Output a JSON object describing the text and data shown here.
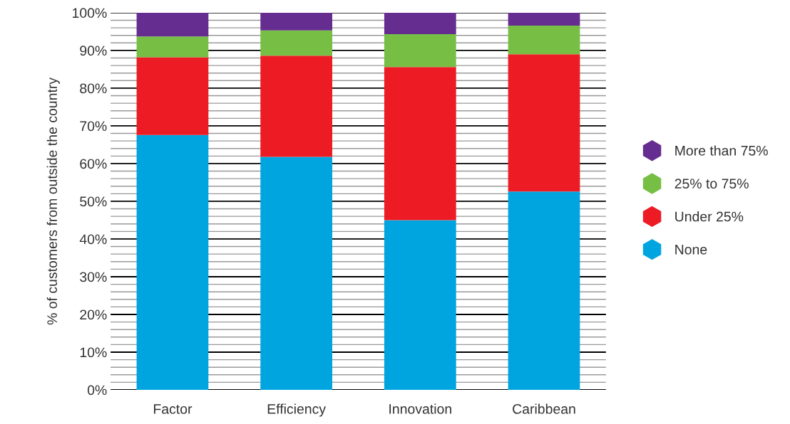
{
  "chart_data": {
    "type": "bar",
    "stacked": true,
    "ylabel": "% of customers from outside the country",
    "categories": [
      "Factor",
      "Efficiency",
      "Innovation",
      "Caribbean"
    ],
    "series": [
      {
        "name": "None",
        "color": "#00a5e0",
        "values": [
          67.6,
          61.8,
          45.0,
          52.6
        ]
      },
      {
        "name": "Under 25%",
        "color": "#ed1c24",
        "values": [
          20.6,
          26.8,
          40.6,
          36.4
        ]
      },
      {
        "name": "25% to 75%",
        "color": "#76bf44",
        "values": [
          5.5,
          6.7,
          8.7,
          7.6
        ]
      },
      {
        "name": "More than 75%",
        "color": "#662d91",
        "values": [
          6.3,
          4.7,
          5.7,
          3.4
        ]
      }
    ],
    "ylim": [
      0,
      100
    ],
    "yticks": [
      {
        "value": 0,
        "label": "0%"
      },
      {
        "value": 2,
        "label": null
      },
      {
        "value": 4,
        "label": null
      },
      {
        "value": 6,
        "label": null
      },
      {
        "value": 8,
        "label": null
      },
      {
        "value": 10,
        "label": "10%"
      },
      {
        "value": 12,
        "label": null
      },
      {
        "value": 14,
        "label": null
      },
      {
        "value": 16,
        "label": null
      },
      {
        "value": 18,
        "label": null
      },
      {
        "value": 20,
        "label": "20%"
      },
      {
        "value": 22,
        "label": null
      },
      {
        "value": 24,
        "label": null
      },
      {
        "value": 26,
        "label": null
      },
      {
        "value": 28,
        "label": null
      },
      {
        "value": 30,
        "label": "30%"
      },
      {
        "value": 32,
        "label": null
      },
      {
        "value": 34,
        "label": null
      },
      {
        "value": 36,
        "label": null
      },
      {
        "value": 38,
        "label": null
      },
      {
        "value": 40,
        "label": "40%"
      },
      {
        "value": 42,
        "label": null
      },
      {
        "value": 44,
        "label": null
      },
      {
        "value": 46,
        "label": null
      },
      {
        "value": 48,
        "label": null
      },
      {
        "value": 50,
        "label": "50%"
      },
      {
        "value": 52,
        "label": null
      },
      {
        "value": 54,
        "label": null
      },
      {
        "value": 56,
        "label": null
      },
      {
        "value": 58,
        "label": null
      },
      {
        "value": 60,
        "label": "60%"
      },
      {
        "value": 62,
        "label": null
      },
      {
        "value": 64,
        "label": null
      },
      {
        "value": 66,
        "label": null
      },
      {
        "value": 68,
        "label": null
      },
      {
        "value": 70,
        "label": "70%"
      },
      {
        "value": 72,
        "label": null
      },
      {
        "value": 74,
        "label": null
      },
      {
        "value": 76,
        "label": null
      },
      {
        "value": 78,
        "label": null
      },
      {
        "value": 80,
        "label": "80%"
      },
      {
        "value": 82,
        "label": null
      },
      {
        "value": 84,
        "label": null
      },
      {
        "value": 86,
        "label": null
      },
      {
        "value": 88,
        "label": null
      },
      {
        "value": 90,
        "label": "90%"
      },
      {
        "value": 92,
        "label": null
      },
      {
        "value": 94,
        "label": null
      },
      {
        "value": 96,
        "label": null
      },
      {
        "value": 98,
        "label": null
      },
      {
        "value": 100,
        "label": "100%"
      }
    ],
    "grid": "y",
    "legend": "right"
  }
}
